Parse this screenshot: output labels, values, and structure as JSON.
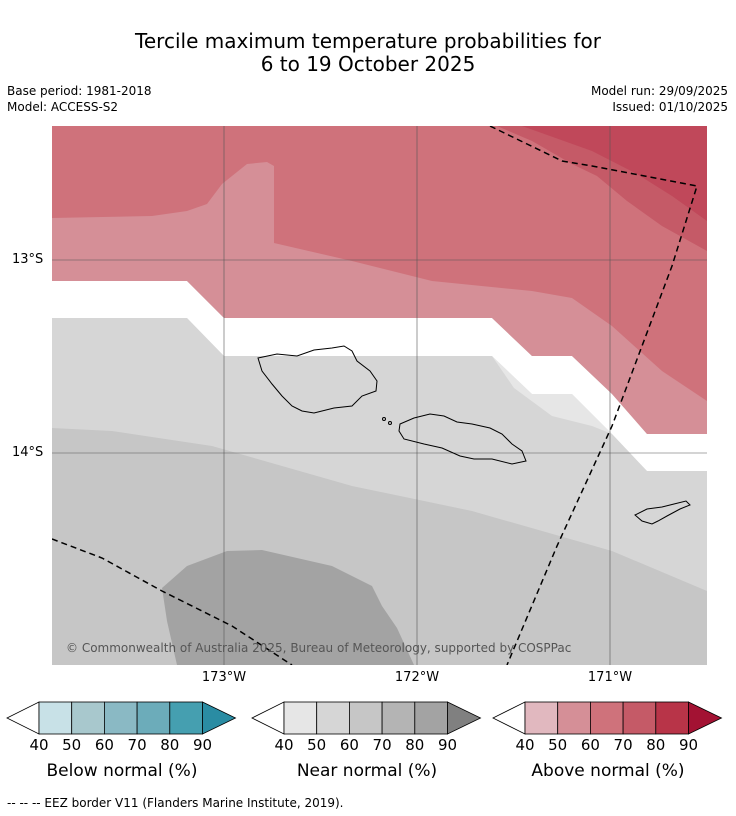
{
  "title_line1": "Tercile maximum temperature probabilities for",
  "title_line2": "6 to 19 October 2025",
  "meta": {
    "base_period": "Base period: 1981-2018",
    "model": "Model: ACCESS-S2",
    "model_run": "Model run: 29/09/2025",
    "issued": "Issued: 01/10/2025"
  },
  "latitudes": [
    "13°S",
    "14°S"
  ],
  "longitudes": [
    "173°W",
    "172°W",
    "171°W"
  ],
  "copyright": "© Commonwealth of Australia 2025, Bureau of Meteorology, supported by COSPPac",
  "colorbars": {
    "ticks": [
      "40",
      "50",
      "60",
      "70",
      "80",
      "90"
    ],
    "below": {
      "label": "Below normal (%)",
      "colors": [
        "#ffffff",
        "#c8e1e7",
        "#a8c8cd",
        "#8ab9c4",
        "#6cacba",
        "#459fb0",
        "#2a8ca3"
      ]
    },
    "near": {
      "label": "Near normal (%)",
      "colors": [
        "#ffffff",
        "#e6e6e6",
        "#d6d6d6",
        "#c6c6c6",
        "#b4b4b4",
        "#a3a3a3",
        "#808080"
      ]
    },
    "above": {
      "label": "Above normal (%)",
      "colors": [
        "#ffffff",
        "#e1b8bf",
        "#d58f97",
        "#cf727b",
        "#c55a67",
        "#b83448",
        "#a31233"
      ]
    }
  },
  "eez_note": "-- -- -- EEZ border V11 (Flanders Marine Institute, 2019)."
}
